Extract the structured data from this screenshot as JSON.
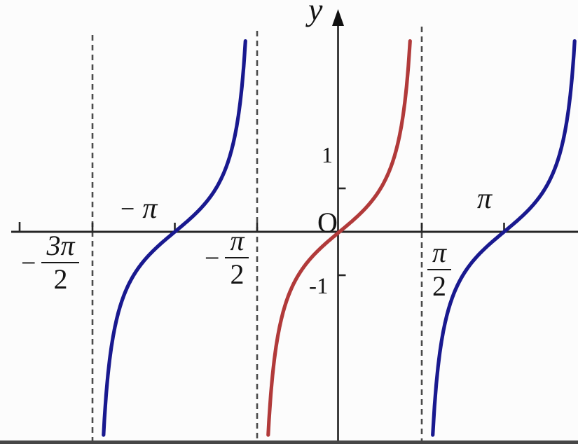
{
  "figure": {
    "background": "#fcfcfc",
    "axis_color": "#262626",
    "asymptote_color": "#4a4a4a",
    "bottom_border_color": "#474747",
    "labels": {
      "y_axis": "y",
      "origin": "O",
      "y_tick_1": "1",
      "y_tick_neg1": "-1",
      "neg_pi": {
        "sign": "−",
        "sym": "π"
      },
      "pi": "π",
      "neg_3pi_2": {
        "sign": "−",
        "num": "3π",
        "den": "2"
      },
      "neg_pi_2": {
        "sign": "−",
        "num": "π",
        "den": "2"
      },
      "pi_2": {
        "num": "π",
        "den": "2"
      }
    }
  },
  "chart_data": {
    "type": "line",
    "function": "y = tan(x)",
    "series": [
      {
        "name": "tan-branch-left",
        "color": "#19198f",
        "center_x": -3.14159,
        "domain": [
          -4.71239,
          -1.5708
        ]
      },
      {
        "name": "tan-branch-middle",
        "color": "#b13a3a",
        "center_x": 0,
        "domain": [
          -1.5708,
          1.5708
        ]
      },
      {
        "name": "tan-branch-right",
        "color": "#19198f",
        "center_x": 3.14159,
        "domain": [
          1.5708,
          4.71239
        ]
      }
    ],
    "asymptotes_x": [
      -4.71239,
      -1.5708,
      1.5708
    ],
    "x_ticks": [
      -4.71239,
      -3.14159,
      -1.5708,
      1.5708,
      3.14159
    ],
    "x_tick_labels": [
      "-3π/2",
      "-π",
      "-π/2",
      "π/2",
      "π"
    ],
    "y_ticks": [
      1,
      -1
    ],
    "xlim": [
      -6.5,
      4.6
    ],
    "ylim": [
      -4.8,
      4.7
    ],
    "grid": false,
    "legend": false
  }
}
